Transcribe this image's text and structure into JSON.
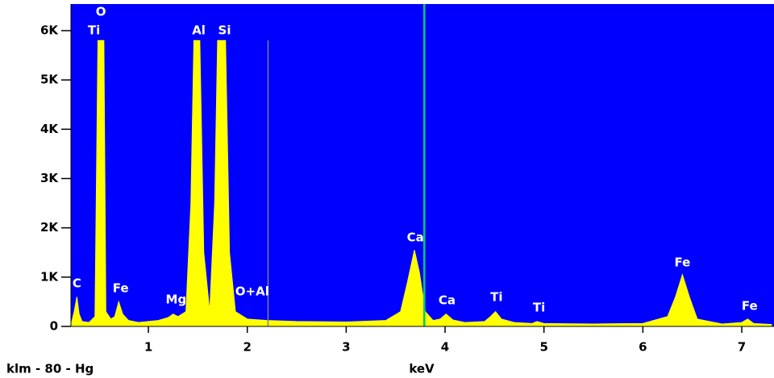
{
  "chart_data": {
    "type": "area",
    "x_label": "keV",
    "footer_left": "klm - 80 - Hg",
    "x": [
      0.22,
      0.25,
      0.277,
      0.3,
      0.33,
      0.4,
      0.46,
      0.49,
      0.51,
      0.55,
      0.57,
      0.62,
      0.66,
      0.7,
      0.74,
      0.8,
      0.9,
      1.0,
      1.1,
      1.2,
      1.25,
      1.3,
      1.38,
      1.43,
      1.46,
      1.52,
      1.56,
      1.62,
      1.67,
      1.7,
      1.78,
      1.82,
      1.88,
      2.0,
      2.2,
      2.5,
      3.0,
      3.4,
      3.55,
      3.62,
      3.69,
      3.74,
      3.8,
      3.88,
      3.95,
      4.01,
      4.08,
      4.2,
      4.4,
      4.46,
      4.51,
      4.57,
      4.7,
      4.88,
      4.93,
      5.0,
      5.5,
      6.0,
      6.25,
      6.33,
      6.4,
      6.47,
      6.55,
      6.8,
      7.0,
      7.06,
      7.12,
      7.3
    ],
    "values": [
      50,
      300,
      600,
      250,
      100,
      80,
      200,
      5800,
      5800,
      5800,
      300,
      150,
      200,
      500,
      250,
      120,
      80,
      100,
      120,
      180,
      250,
      200,
      300,
      2500,
      5800,
      5800,
      1500,
      300,
      2500,
      5800,
      5800,
      1500,
      300,
      150,
      120,
      100,
      90,
      120,
      300,
      900,
      1550,
      1100,
      300,
      120,
      150,
      250,
      130,
      80,
      100,
      200,
      300,
      150,
      80,
      60,
      100,
      60,
      50,
      60,
      200,
      600,
      1050,
      600,
      150,
      50,
      80,
      150,
      60,
      40
    ],
    "color": "#ffff00",
    "background": "#0000ff",
    "xlim": [
      0.217,
      7.326
    ],
    "ylim": [
      0,
      6540
    ],
    "xticks": [
      1,
      2,
      3,
      4,
      5,
      6,
      7
    ],
    "yticks": [
      0,
      {
        "value": 1000,
        "label": "1K"
      },
      {
        "value": 2000,
        "label": "2K"
      },
      {
        "value": 3000,
        "label": "3K"
      },
      {
        "value": 4000,
        "label": "4K"
      },
      {
        "value": 5000,
        "label": "5K"
      },
      {
        "value": 6000,
        "label": "6K"
      }
    ],
    "cursor_x": 3.79,
    "cursor_color": "#00cc66",
    "marker_x": 2.21,
    "marker_color": "#808080",
    "annotations": [
      {
        "text": "C",
        "x": 0.277,
        "y": 870
      },
      {
        "text": "O",
        "x": 0.52,
        "y": 6380
      },
      {
        "text": "Ti",
        "x": 0.45,
        "y": 6000
      },
      {
        "text": "Fe",
        "x": 0.72,
        "y": 770
      },
      {
        "text": "Mg",
        "x": 1.28,
        "y": 540
      },
      {
        "text": "Al",
        "x": 1.51,
        "y": 6000
      },
      {
        "text": "Si",
        "x": 1.77,
        "y": 6000
      },
      {
        "text": "O+Al",
        "x": 2.05,
        "y": 700
      },
      {
        "text": "Ca",
        "x": 3.7,
        "y": 1800
      },
      {
        "text": "Ca",
        "x": 4.02,
        "y": 520
      },
      {
        "text": "Ti",
        "x": 4.52,
        "y": 590
      },
      {
        "text": "Ti",
        "x": 4.95,
        "y": 380
      },
      {
        "text": "Fe",
        "x": 6.4,
        "y": 1290
      },
      {
        "text": "Fe",
        "x": 7.08,
        "y": 410
      }
    ]
  }
}
